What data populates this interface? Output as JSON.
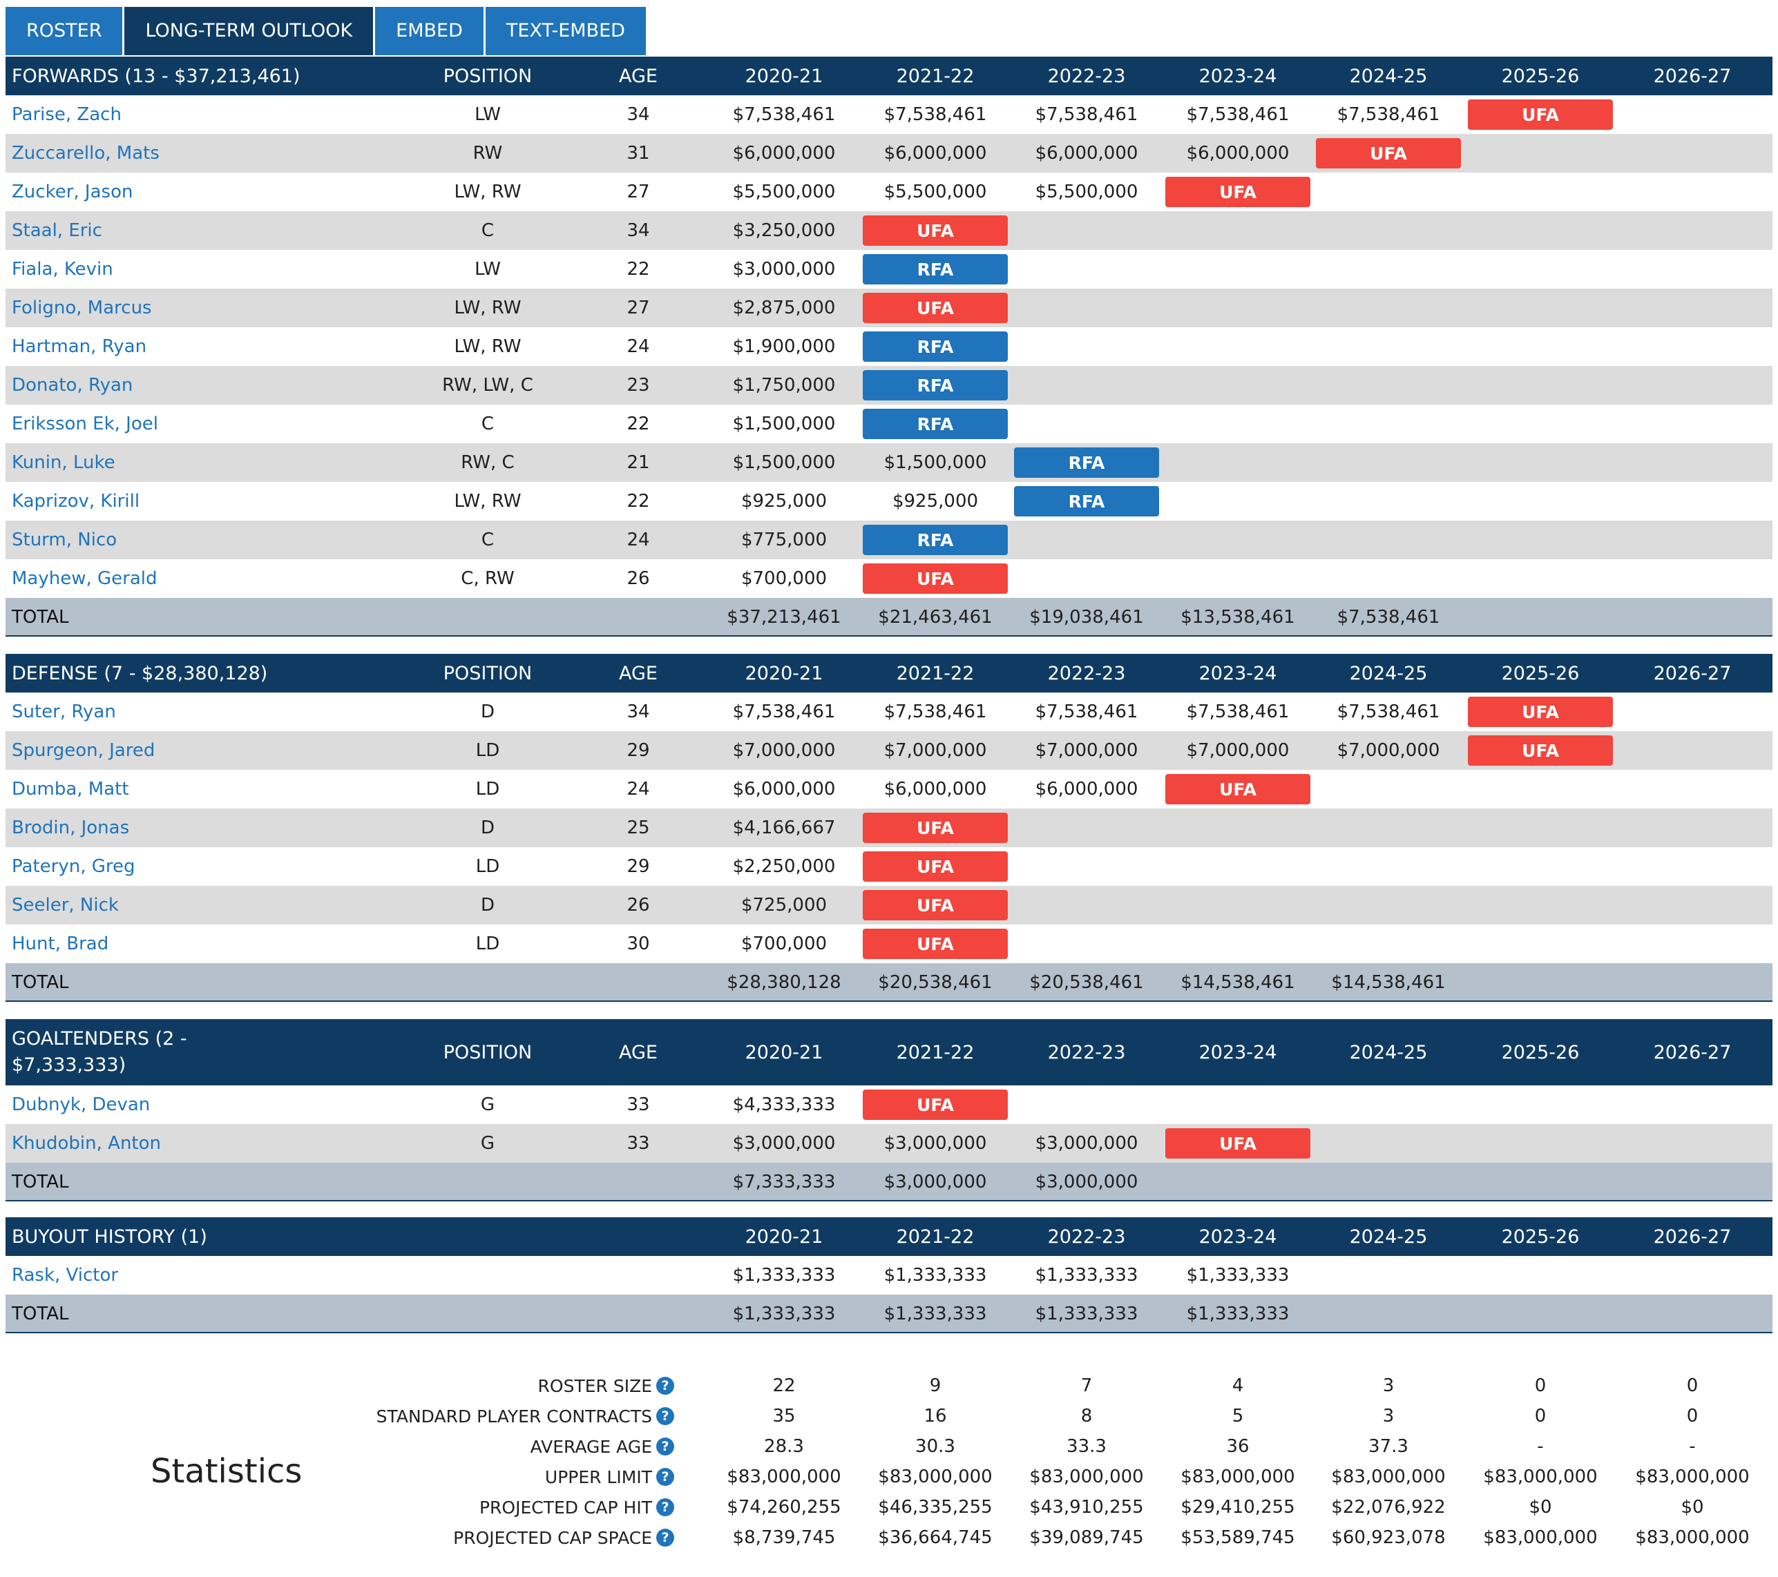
{
  "tabs": [
    "ROSTER",
    "LONG-TERM OUTLOOK",
    "EMBED",
    "TEXT-EMBED"
  ],
  "active_tab": 1,
  "seasons": [
    "2020-21",
    "2021-22",
    "2022-23",
    "2023-24",
    "2024-25",
    "2025-26",
    "2026-27"
  ],
  "headers": {
    "position": "POSITION",
    "age": "AGE",
    "total": "TOTAL"
  },
  "forwards": {
    "title": "FORWARDS (13 - $37,213,461)",
    "rows": [
      {
        "name": "Parise, Zach",
        "pos": "LW",
        "age": "34",
        "cells": [
          "$7,538,461",
          "$7,538,461",
          "$7,538,461",
          "$7,538,461",
          "$7,538,461",
          "UFA",
          ""
        ]
      },
      {
        "name": "Zuccarello, Mats",
        "pos": "RW",
        "age": "31",
        "cells": [
          "$6,000,000",
          "$6,000,000",
          "$6,000,000",
          "$6,000,000",
          "UFA",
          "",
          ""
        ]
      },
      {
        "name": "Zucker, Jason",
        "pos": "LW, RW",
        "age": "27",
        "cells": [
          "$5,500,000",
          "$5,500,000",
          "$5,500,000",
          "UFA",
          "",
          "",
          ""
        ]
      },
      {
        "name": "Staal, Eric",
        "pos": "C",
        "age": "34",
        "cells": [
          "$3,250,000",
          "UFA",
          "",
          "",
          "",
          "",
          ""
        ]
      },
      {
        "name": "Fiala, Kevin",
        "pos": "LW",
        "age": "22",
        "cells": [
          "$3,000,000",
          "RFA",
          "",
          "",
          "",
          "",
          ""
        ]
      },
      {
        "name": "Foligno, Marcus",
        "pos": "LW, RW",
        "age": "27",
        "cells": [
          "$2,875,000",
          "UFA",
          "",
          "",
          "",
          "",
          ""
        ]
      },
      {
        "name": "Hartman, Ryan",
        "pos": "LW, RW",
        "age": "24",
        "cells": [
          "$1,900,000",
          "RFA",
          "",
          "",
          "",
          "",
          ""
        ]
      },
      {
        "name": "Donato, Ryan",
        "pos": "RW, LW, C",
        "age": "23",
        "cells": [
          "$1,750,000",
          "RFA",
          "",
          "",
          "",
          "",
          ""
        ]
      },
      {
        "name": "Eriksson Ek, Joel",
        "pos": "C",
        "age": "22",
        "cells": [
          "$1,500,000",
          "RFA",
          "",
          "",
          "",
          "",
          ""
        ]
      },
      {
        "name": "Kunin, Luke",
        "pos": "RW, C",
        "age": "21",
        "cells": [
          "$1,500,000",
          "$1,500,000",
          "RFA",
          "",
          "",
          "",
          ""
        ]
      },
      {
        "name": "Kaprizov, Kirill",
        "pos": "LW, RW",
        "age": "22",
        "cells": [
          "$925,000",
          "$925,000",
          "RFA",
          "",
          "",
          "",
          ""
        ]
      },
      {
        "name": "Sturm, Nico",
        "pos": "C",
        "age": "24",
        "cells": [
          "$775,000",
          "RFA",
          "",
          "",
          "",
          "",
          ""
        ]
      },
      {
        "name": "Mayhew, Gerald",
        "pos": "C, RW",
        "age": "26",
        "cells": [
          "$700,000",
          "UFA",
          "",
          "",
          "",
          "",
          ""
        ]
      }
    ],
    "totals": [
      "$37,213,461",
      "$21,463,461",
      "$19,038,461",
      "$13,538,461",
      "$7,538,461",
      "",
      ""
    ]
  },
  "defense": {
    "title": "DEFENSE (7 - $28,380,128)",
    "rows": [
      {
        "name": "Suter, Ryan",
        "pos": "D",
        "age": "34",
        "cells": [
          "$7,538,461",
          "$7,538,461",
          "$7,538,461",
          "$7,538,461",
          "$7,538,461",
          "UFA",
          ""
        ]
      },
      {
        "name": "Spurgeon, Jared",
        "pos": "LD",
        "age": "29",
        "cells": [
          "$7,000,000",
          "$7,000,000",
          "$7,000,000",
          "$7,000,000",
          "$7,000,000",
          "UFA",
          ""
        ]
      },
      {
        "name": "Dumba, Matt",
        "pos": "LD",
        "age": "24",
        "cells": [
          "$6,000,000",
          "$6,000,000",
          "$6,000,000",
          "UFA",
          "",
          "",
          ""
        ]
      },
      {
        "name": "Brodin, Jonas",
        "pos": "D",
        "age": "25",
        "cells": [
          "$4,166,667",
          "UFA",
          "",
          "",
          "",
          "",
          ""
        ]
      },
      {
        "name": "Pateryn, Greg",
        "pos": "LD",
        "age": "29",
        "cells": [
          "$2,250,000",
          "UFA",
          "",
          "",
          "",
          "",
          ""
        ]
      },
      {
        "name": "Seeler, Nick",
        "pos": "D",
        "age": "26",
        "cells": [
          "$725,000",
          "UFA",
          "",
          "",
          "",
          "",
          ""
        ]
      },
      {
        "name": "Hunt, Brad",
        "pos": "LD",
        "age": "30",
        "cells": [
          "$700,000",
          "UFA",
          "",
          "",
          "",
          "",
          ""
        ]
      }
    ],
    "totals": [
      "$28,380,128",
      "$20,538,461",
      "$20,538,461",
      "$14,538,461",
      "$14,538,461",
      "",
      ""
    ]
  },
  "goalies": {
    "title_line1": "GOALTENDERS (2 -",
    "title_line2": "$7,333,333)",
    "rows": [
      {
        "name": "Dubnyk, Devan",
        "pos": "G",
        "age": "33",
        "cells": [
          "$4,333,333",
          "UFA",
          "",
          "",
          "",
          "",
          ""
        ]
      },
      {
        "name": "Khudobin, Anton",
        "pos": "G",
        "age": "33",
        "cells": [
          "$3,000,000",
          "$3,000,000",
          "$3,000,000",
          "UFA",
          "",
          "",
          ""
        ]
      }
    ],
    "totals": [
      "$7,333,333",
      "$3,000,000",
      "$3,000,000",
      "",
      "",
      "",
      ""
    ]
  },
  "buyouts": {
    "title": "BUYOUT HISTORY (1)",
    "rows": [
      {
        "name": "Rask, Victor",
        "cells": [
          "$1,333,333",
          "$1,333,333",
          "$1,333,333",
          "$1,333,333",
          "",
          "",
          ""
        ]
      }
    ],
    "totals": [
      "$1,333,333",
      "$1,333,333",
      "$1,333,333",
      "$1,333,333",
      "",
      "",
      ""
    ]
  },
  "statistics": {
    "title": "Statistics",
    "help_glyph": "?",
    "rows": [
      {
        "label": "ROSTER SIZE",
        "values": [
          "22",
          "9",
          "7",
          "4",
          "3",
          "0",
          "0"
        ]
      },
      {
        "label": "STANDARD PLAYER CONTRACTS",
        "values": [
          "35",
          "16",
          "8",
          "5",
          "3",
          "0",
          "0"
        ]
      },
      {
        "label": "AVERAGE AGE",
        "values": [
          "28.3",
          "30.3",
          "33.3",
          "36",
          "37.3",
          "-",
          "-"
        ]
      },
      {
        "label": "UPPER LIMIT",
        "values": [
          "$83,000,000",
          "$83,000,000",
          "$83,000,000",
          "$83,000,000",
          "$83,000,000",
          "$83,000,000",
          "$83,000,000"
        ]
      },
      {
        "label": "PROJECTED CAP HIT",
        "values": [
          "$74,260,255",
          "$46,335,255",
          "$43,910,255",
          "$29,410,255",
          "$22,076,922",
          "$0",
          "$0"
        ]
      },
      {
        "label": "PROJECTED CAP SPACE",
        "values": [
          "$8,739,745",
          "$36,664,745",
          "$39,089,745",
          "$53,589,745",
          "$60,923,078",
          "$83,000,000",
          "$83,000,000"
        ]
      }
    ]
  },
  "colors": {
    "header": "#0f3b62",
    "tab": "#1f74bb",
    "ufa": "#f2453d",
    "rfa": "#1f74bb",
    "alt_row": "#dcdcdc",
    "total_row": "#b4c0cc"
  }
}
